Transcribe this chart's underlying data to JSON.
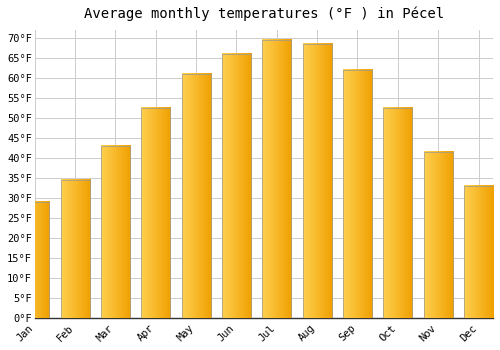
{
  "title": "Average monthly temperatures (°F ) in Pécel",
  "months": [
    "Jan",
    "Feb",
    "Mar",
    "Apr",
    "May",
    "Jun",
    "Jul",
    "Aug",
    "Sep",
    "Oct",
    "Nov",
    "Dec"
  ],
  "values": [
    29,
    34.5,
    43,
    52.5,
    61,
    66,
    69.5,
    68.5,
    62,
    52.5,
    41.5,
    33
  ],
  "ylim": [
    0,
    72
  ],
  "yticks": [
    0,
    5,
    10,
    15,
    20,
    25,
    30,
    35,
    40,
    45,
    50,
    55,
    60,
    65,
    70
  ],
  "background_color": "#FFFFFF",
  "grid_color": "#CCCCCC",
  "title_fontsize": 10,
  "tick_fontsize": 7.5,
  "bar_left_color": "#FFD050",
  "bar_right_color": "#F0A000",
  "bar_edge_color": "#999999",
  "bar_width": 0.72
}
